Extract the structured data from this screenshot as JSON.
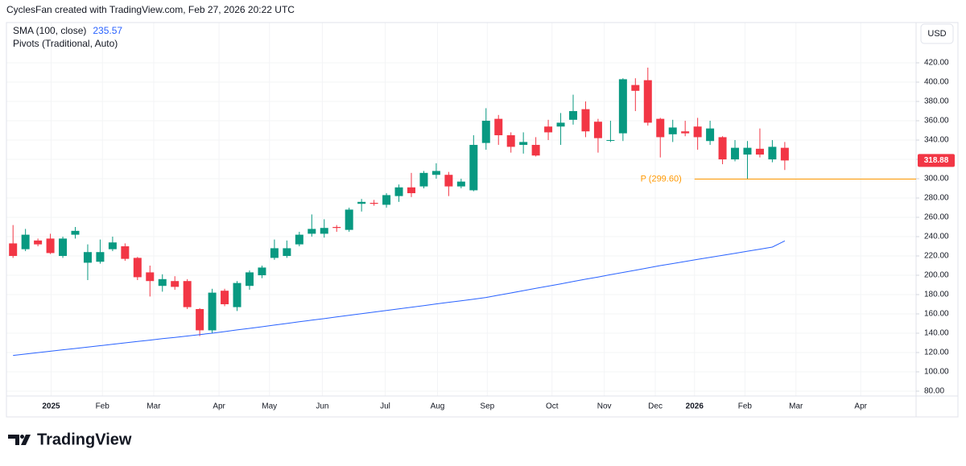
{
  "header": {
    "title": "CyclesFan created with TradingView.com, Feb 27, 2026 20:22 UTC"
  },
  "footer": {
    "brand": "TradingView"
  },
  "chart_data": {
    "type": "candlestick",
    "currency": "USD",
    "up_color": "#089981",
    "down_color": "#f23645",
    "grid": true,
    "open": [
      233,
      227,
      236,
      238,
      220,
      242,
      213,
      214,
      227,
      230,
      218,
      203,
      189,
      194,
      194,
      165,
      143,
      184,
      167,
      189,
      200,
      218,
      220,
      232,
      243,
      243,
      250,
      247,
      274,
      275,
      273,
      282,
      291,
      292,
      304,
      304,
      292,
      288,
      337,
      362,
      345,
      335,
      335,
      354,
      354,
      361,
      372,
      359,
      340,
      347,
      397,
      402,
      362,
      346,
      349,
      354,
      339,
      343,
      320,
      325,
      331,
      320,
      332
    ],
    "high": [
      252,
      248,
      238,
      243,
      240,
      250,
      232,
      237,
      240,
      233,
      219,
      210,
      201,
      199,
      196,
      166,
      186,
      186,
      194,
      205,
      210,
      237,
      236,
      245,
      263,
      258,
      252,
      270,
      279,
      278,
      285,
      294,
      306,
      308,
      316,
      307,
      300,
      345,
      373,
      366,
      348,
      348,
      343,
      361,
      368,
      387,
      380,
      362,
      360,
      404,
      404,
      415,
      363,
      361,
      360,
      363,
      360,
      344,
      340,
      339,
      352,
      340,
      338
    ],
    "low": [
      218,
      225,
      230,
      222,
      218,
      238,
      195,
      212,
      225,
      215,
      195,
      178,
      183,
      185,
      165,
      137,
      140,
      168,
      163,
      185,
      197,
      216,
      218,
      230,
      240,
      239,
      245,
      245,
      266,
      272,
      270,
      276,
      281,
      290,
      300,
      282,
      290,
      287,
      330,
      335,
      327,
      326,
      323,
      340,
      335,
      356,
      343,
      327,
      338,
      339,
      370,
      355,
      322,
      338,
      344,
      330,
      335,
      315,
      318,
      300,
      322,
      317,
      309
    ],
    "close": [
      220,
      242,
      232,
      223,
      238,
      246,
      224,
      224,
      234,
      217,
      198,
      194,
      196,
      188,
      167,
      143,
      182,
      170,
      192,
      203,
      208,
      228,
      228,
      242,
      248,
      249,
      249,
      268,
      276,
      274,
      283,
      291,
      285,
      306,
      308,
      292,
      297,
      335,
      360,
      345,
      333,
      338,
      324,
      348,
      358,
      370,
      349,
      342,
      340,
      403,
      391,
      358,
      343,
      353,
      347,
      343,
      352,
      320,
      332,
      332,
      325,
      333,
      318.88
    ],
    "sma": {
      "name": "SMA (100, close)",
      "color": "#2962ff",
      "values": [
        117,
        118.4,
        119.9,
        121.3,
        122.8,
        124.2,
        125.6,
        127.1,
        128.5,
        130,
        131.4,
        132.8,
        134.3,
        135.7,
        137.1,
        138.6,
        140,
        141.7,
        143.4,
        145,
        146.7,
        148.4,
        150.1,
        151.8,
        153.5,
        155.1,
        156.8,
        158.5,
        160.2,
        161.9,
        163.6,
        165.2,
        166.9,
        168.6,
        170.3,
        172,
        173.6,
        175.3,
        177,
        179.4,
        181.7,
        184.1,
        186.4,
        188.8,
        191.1,
        193.5,
        195.9,
        198.2,
        200.6,
        202.9,
        205.3,
        207.6,
        210,
        212.1,
        214.3,
        216.4,
        218.5,
        220.7,
        222.8,
        224.9,
        227,
        229.2,
        235.57
      ]
    },
    "pivots": {
      "name": "Pivots (Traditional, Auto)",
      "label": "P (299.60)",
      "value": 299.6,
      "color": "#ff9800"
    },
    "xlim": [
      -0.53,
      72.55
    ],
    "xticks": [
      {
        "value": 3.06,
        "label": "2025"
      },
      {
        "value": 7.18,
        "label": "Feb"
      },
      {
        "value": 11.3,
        "label": "Mar"
      },
      {
        "value": 16.55,
        "label": "Apr"
      },
      {
        "value": 20.6,
        "label": "May"
      },
      {
        "value": 24.85,
        "label": "Jun"
      },
      {
        "value": 29.9,
        "label": "Jul"
      },
      {
        "value": 34.1,
        "label": "Aug"
      },
      {
        "value": 38.1,
        "label": "Sep"
      },
      {
        "value": 43.3,
        "label": "Oct"
      },
      {
        "value": 47.5,
        "label": "Nov"
      },
      {
        "value": 51.6,
        "label": "Dec"
      },
      {
        "value": 54.75,
        "label": "2026"
      },
      {
        "value": 58.8,
        "label": "Feb"
      },
      {
        "value": 62.9,
        "label": "Mar"
      },
      {
        "value": 68.1,
        "label": "Apr"
      }
    ],
    "ylim": [
      75,
      461.7
    ],
    "yticks": [
      {
        "value": 80,
        "label": "80.00"
      },
      {
        "value": 100,
        "label": "100.00"
      },
      {
        "value": 120,
        "label": "120.00"
      },
      {
        "value": 140,
        "label": "140.00"
      },
      {
        "value": 160,
        "label": "160.00"
      },
      {
        "value": 180,
        "label": "180.00"
      },
      {
        "value": 200,
        "label": "200.00"
      },
      {
        "value": 220,
        "label": "220.00"
      },
      {
        "value": 240,
        "label": "240.00"
      },
      {
        "value": 260,
        "label": "260.00"
      },
      {
        "value": 280,
        "label": "280.00"
      },
      {
        "value": 300,
        "label": "300.00"
      },
      {
        "value": 320,
        "label": "320.00"
      },
      {
        "value": 340,
        "label": "340.00"
      },
      {
        "value": 360,
        "label": "360.00"
      },
      {
        "value": 380,
        "label": "380.00"
      },
      {
        "value": 400,
        "label": "400.00"
      },
      {
        "value": 420,
        "label": "420.00"
      }
    ]
  }
}
